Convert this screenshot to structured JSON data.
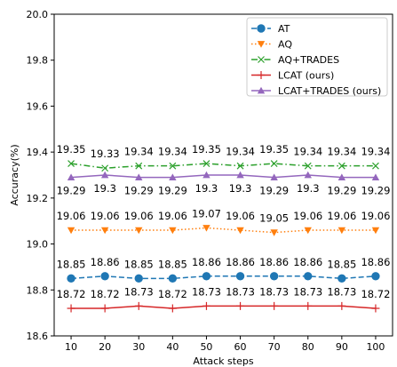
{
  "chart_data": {
    "type": "line",
    "title": "",
    "xlabel": "Attack steps",
    "ylabel": "Accuracy(%)",
    "x": [
      10,
      20,
      30,
      40,
      50,
      60,
      70,
      80,
      90,
      100
    ],
    "xticks": [
      "10",
      "20",
      "30",
      "40",
      "50",
      "60",
      "70",
      "80",
      "90",
      "100"
    ],
    "ylim": [
      18.6,
      20.0
    ],
    "yticks": [
      "18.6",
      "18.8",
      "19.0",
      "19.2",
      "19.4",
      "19.6",
      "19.8",
      "20.0"
    ],
    "grid": false,
    "legend_position": "top-right",
    "series": [
      {
        "name": "AT",
        "color": "#1f77b4",
        "line_style": "dashed",
        "marker": "circle",
        "label_position": "above",
        "values": [
          18.85,
          18.86,
          18.85,
          18.85,
          18.86,
          18.86,
          18.86,
          18.86,
          18.85,
          18.86
        ],
        "labels": [
          "18.85",
          "18.86",
          "18.85",
          "18.85",
          "18.86",
          "18.86",
          "18.86",
          "18.86",
          "18.85",
          "18.86"
        ]
      },
      {
        "name": "AQ",
        "color": "#ff7f0e",
        "line_style": "dotted",
        "marker": "triangle-down",
        "label_position": "above",
        "values": [
          19.06,
          19.06,
          19.06,
          19.06,
          19.07,
          19.06,
          19.05,
          19.06,
          19.06,
          19.06
        ],
        "labels": [
          "19.06",
          "19.06",
          "19.06",
          "19.06",
          "19.07",
          "19.06",
          "19.05",
          "19.06",
          "19.06",
          "19.06"
        ]
      },
      {
        "name": "AQ+TRADES",
        "color": "#2ca02c",
        "line_style": "dashdot",
        "marker": "x",
        "label_position": "above",
        "values": [
          19.35,
          19.33,
          19.34,
          19.34,
          19.35,
          19.34,
          19.35,
          19.34,
          19.34,
          19.34
        ],
        "labels": [
          "19.35",
          "19.33",
          "19.34",
          "19.34",
          "19.35",
          "19.34",
          "19.35",
          "19.34",
          "19.34",
          "19.34"
        ]
      },
      {
        "name": "LCAT (ours)",
        "color": "#d62728",
        "line_style": "solid",
        "marker": "plus",
        "label_position": "above",
        "values": [
          18.72,
          18.72,
          18.73,
          18.72,
          18.73,
          18.73,
          18.73,
          18.73,
          18.73,
          18.72
        ],
        "labels": [
          "18.72",
          "18.72",
          "18.73",
          "18.72",
          "18.73",
          "18.73",
          "18.73",
          "18.73",
          "18.73",
          "18.72"
        ]
      },
      {
        "name": "LCAT+TRADES (ours)",
        "color": "#9467bd",
        "line_style": "solid",
        "marker": "triangle-up",
        "label_position": "below",
        "values": [
          19.29,
          19.3,
          19.29,
          19.29,
          19.3,
          19.3,
          19.29,
          19.3,
          19.29,
          19.29
        ],
        "labels": [
          "19.29",
          "19.3",
          "19.29",
          "19.29",
          "19.3",
          "19.3",
          "19.29",
          "19.3",
          "19.29",
          "19.29"
        ]
      }
    ]
  }
}
